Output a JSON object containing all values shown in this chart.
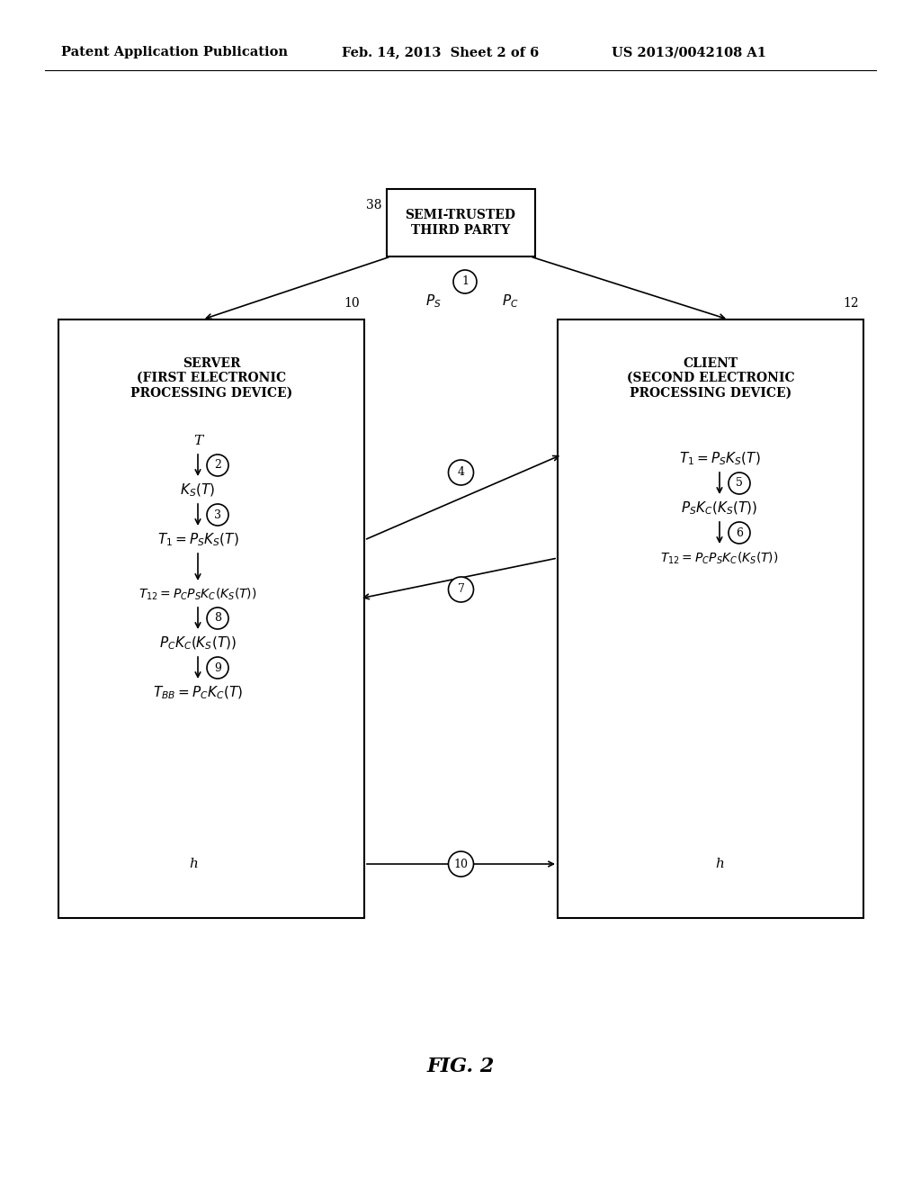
{
  "bg_color": "#ffffff",
  "header_left": "Patent Application Publication",
  "header_mid": "Feb. 14, 2013  Sheet 2 of 6",
  "header_right": "US 2013/0042108 A1",
  "fig_label": "FIG. 2",
  "third_party_label": "SEMI-TRUSTED\nTHIRD PARTY",
  "third_party_ref": "38",
  "server_label": "SERVER\n(FIRST ELECTRONIC\nPROCESSING DEVICE)",
  "server_ref": "10",
  "client_label": "CLIENT\n(SECOND ELECTRONIC\nPROCESSING DEVICE)",
  "client_ref": "12"
}
